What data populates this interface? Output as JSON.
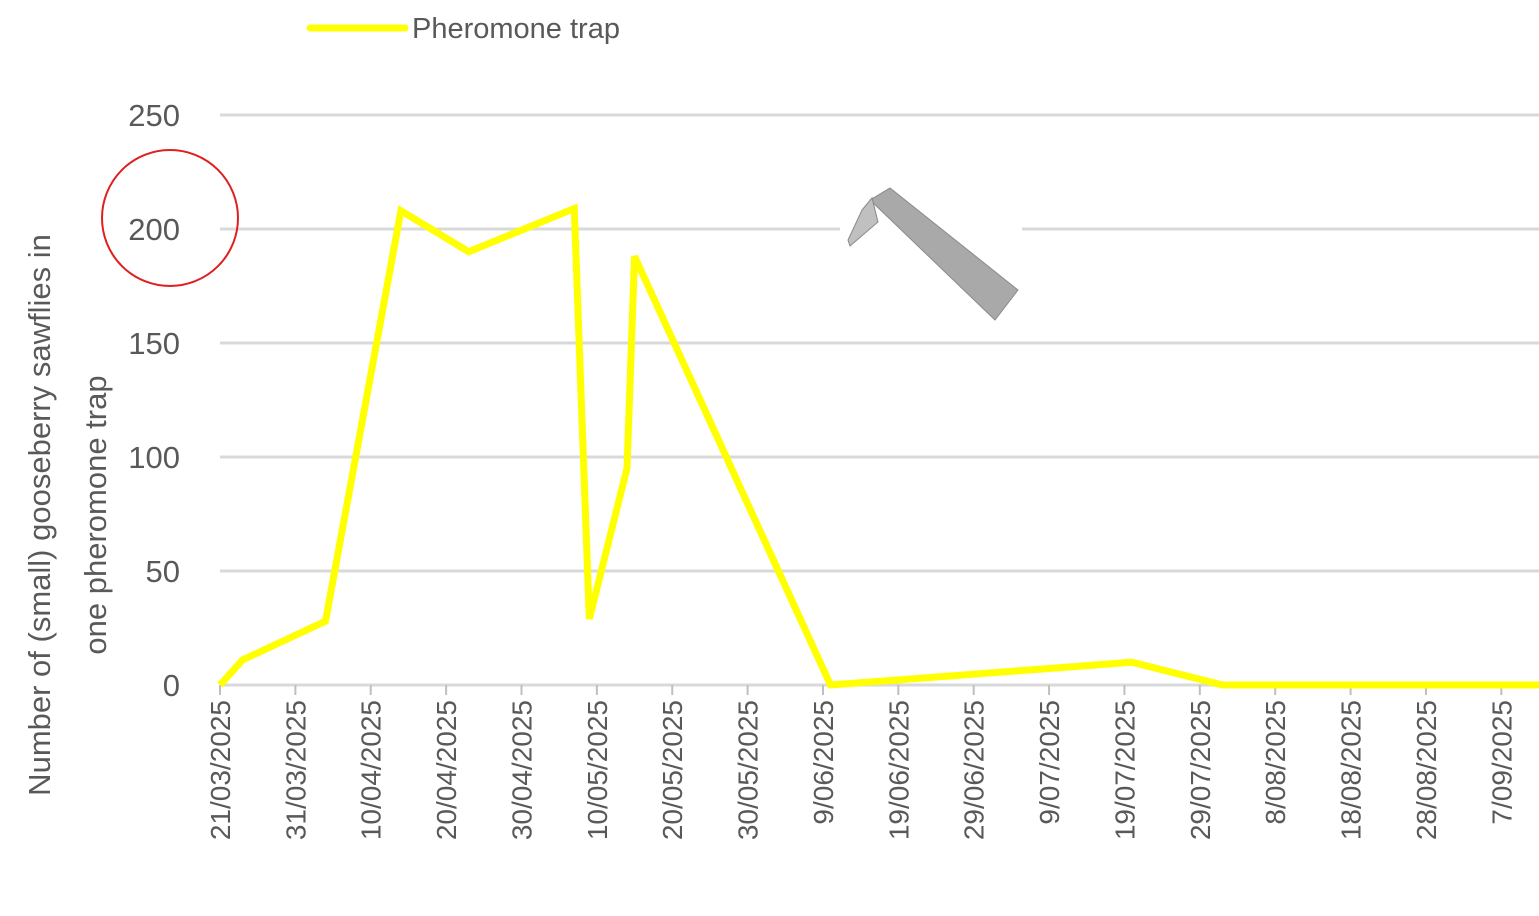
{
  "chart_data": {
    "type": "line",
    "legend": "top",
    "ylabel": [
      "Number of (small) gooseberry sawflies in",
      "one pheromone trap"
    ],
    "x": [
      "21/03/2025",
      "24/03/2025",
      "04/04/2025",
      "14/04/2025",
      "23/04/2025",
      "07/05/2025",
      "09/05/2025",
      "14/05/2025",
      "15/05/2025",
      "10/06/2025",
      "20/07/2025",
      "01/08/2025",
      "12/09/2025"
    ],
    "series": [
      {
        "name": "Pheromone trap",
        "color": "#ffff00",
        "values": [
          0,
          11,
          28,
          208,
          190,
          209,
          29,
          95,
          188,
          0,
          10,
          0,
          0
        ]
      }
    ],
    "xlim": [
      "21/03/2025",
      "12/09/2025"
    ],
    "xticks": [
      "21/03/2025",
      "31/03/2025",
      "10/04/2025",
      "20/04/2025",
      "30/04/2025",
      "10/05/2025",
      "20/05/2025",
      "30/05/2025",
      "9/06/2025",
      "19/06/2025",
      "29/06/2025",
      "9/07/2025",
      "19/07/2025",
      "29/07/2025",
      "8/08/2025",
      "18/08/2025",
      "28/08/2025",
      "7/09/2025"
    ],
    "ylim": [
      0,
      250
    ],
    "yticks": [
      0,
      50,
      100,
      150,
      200,
      250
    ],
    "grid": true
  }
}
